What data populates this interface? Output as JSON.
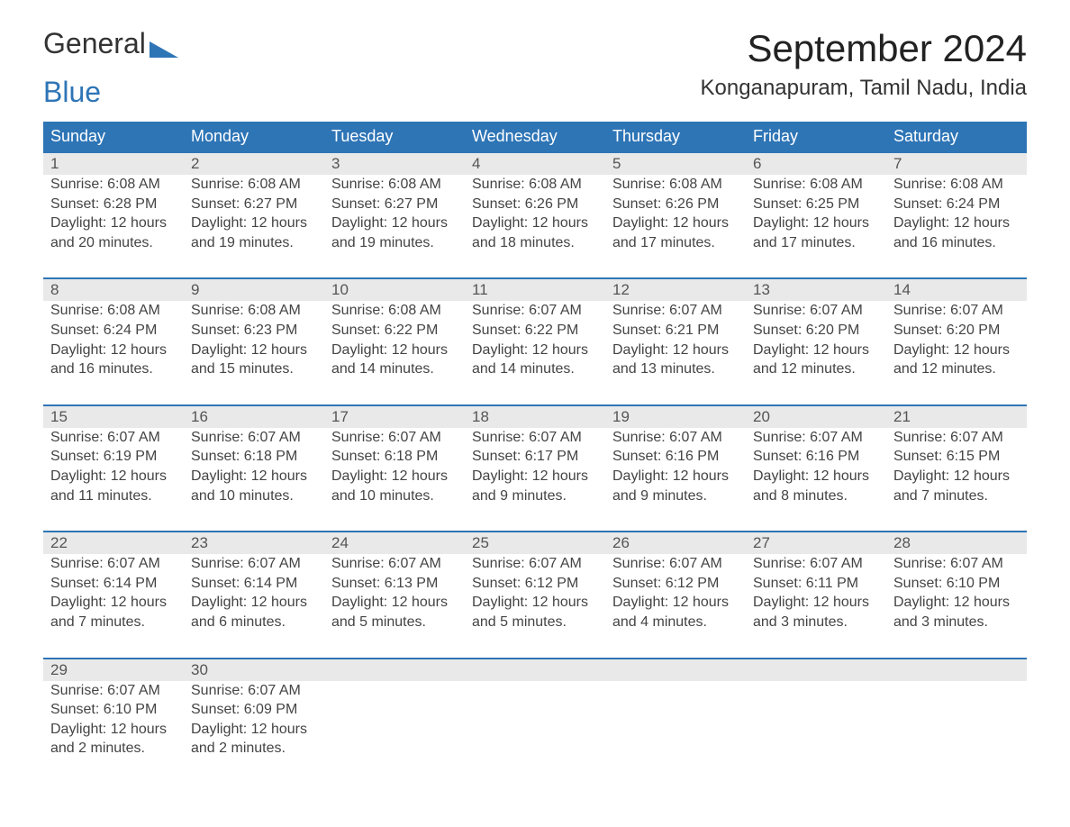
{
  "logo": {
    "part1": "General",
    "part2": "Blue"
  },
  "title": "September 2024",
  "location": "Konganapuram, Tamil Nadu, India",
  "weekdays": [
    "Sunday",
    "Monday",
    "Tuesday",
    "Wednesday",
    "Thursday",
    "Friday",
    "Saturday"
  ],
  "colors": {
    "header_bg": "#2e75b6",
    "header_text": "#ffffff",
    "daynum_bg": "#e9e9e9",
    "daynum_border": "#2e75b6",
    "body_text": "#444444",
    "background": "#ffffff"
  },
  "typography": {
    "title_fontsize_pt": 32,
    "location_fontsize_pt": 18,
    "header_fontsize_pt": 14,
    "cell_fontsize_pt": 12
  },
  "weeks": [
    [
      {
        "n": "1",
        "sr": "Sunrise: 6:08 AM",
        "ss": "Sunset: 6:28 PM",
        "d1": "Daylight: 12 hours",
        "d2": "and 20 minutes."
      },
      {
        "n": "2",
        "sr": "Sunrise: 6:08 AM",
        "ss": "Sunset: 6:27 PM",
        "d1": "Daylight: 12 hours",
        "d2": "and 19 minutes."
      },
      {
        "n": "3",
        "sr": "Sunrise: 6:08 AM",
        "ss": "Sunset: 6:27 PM",
        "d1": "Daylight: 12 hours",
        "d2": "and 19 minutes."
      },
      {
        "n": "4",
        "sr": "Sunrise: 6:08 AM",
        "ss": "Sunset: 6:26 PM",
        "d1": "Daylight: 12 hours",
        "d2": "and 18 minutes."
      },
      {
        "n": "5",
        "sr": "Sunrise: 6:08 AM",
        "ss": "Sunset: 6:26 PM",
        "d1": "Daylight: 12 hours",
        "d2": "and 17 minutes."
      },
      {
        "n": "6",
        "sr": "Sunrise: 6:08 AM",
        "ss": "Sunset: 6:25 PM",
        "d1": "Daylight: 12 hours",
        "d2": "and 17 minutes."
      },
      {
        "n": "7",
        "sr": "Sunrise: 6:08 AM",
        "ss": "Sunset: 6:24 PM",
        "d1": "Daylight: 12 hours",
        "d2": "and 16 minutes."
      }
    ],
    [
      {
        "n": "8",
        "sr": "Sunrise: 6:08 AM",
        "ss": "Sunset: 6:24 PM",
        "d1": "Daylight: 12 hours",
        "d2": "and 16 minutes."
      },
      {
        "n": "9",
        "sr": "Sunrise: 6:08 AM",
        "ss": "Sunset: 6:23 PM",
        "d1": "Daylight: 12 hours",
        "d2": "and 15 minutes."
      },
      {
        "n": "10",
        "sr": "Sunrise: 6:08 AM",
        "ss": "Sunset: 6:22 PM",
        "d1": "Daylight: 12 hours",
        "d2": "and 14 minutes."
      },
      {
        "n": "11",
        "sr": "Sunrise: 6:07 AM",
        "ss": "Sunset: 6:22 PM",
        "d1": "Daylight: 12 hours",
        "d2": "and 14 minutes."
      },
      {
        "n": "12",
        "sr": "Sunrise: 6:07 AM",
        "ss": "Sunset: 6:21 PM",
        "d1": "Daylight: 12 hours",
        "d2": "and 13 minutes."
      },
      {
        "n": "13",
        "sr": "Sunrise: 6:07 AM",
        "ss": "Sunset: 6:20 PM",
        "d1": "Daylight: 12 hours",
        "d2": "and 12 minutes."
      },
      {
        "n": "14",
        "sr": "Sunrise: 6:07 AM",
        "ss": "Sunset: 6:20 PM",
        "d1": "Daylight: 12 hours",
        "d2": "and 12 minutes."
      }
    ],
    [
      {
        "n": "15",
        "sr": "Sunrise: 6:07 AM",
        "ss": "Sunset: 6:19 PM",
        "d1": "Daylight: 12 hours",
        "d2": "and 11 minutes."
      },
      {
        "n": "16",
        "sr": "Sunrise: 6:07 AM",
        "ss": "Sunset: 6:18 PM",
        "d1": "Daylight: 12 hours",
        "d2": "and 10 minutes."
      },
      {
        "n": "17",
        "sr": "Sunrise: 6:07 AM",
        "ss": "Sunset: 6:18 PM",
        "d1": "Daylight: 12 hours",
        "d2": "and 10 minutes."
      },
      {
        "n": "18",
        "sr": "Sunrise: 6:07 AM",
        "ss": "Sunset: 6:17 PM",
        "d1": "Daylight: 12 hours",
        "d2": "and 9 minutes."
      },
      {
        "n": "19",
        "sr": "Sunrise: 6:07 AM",
        "ss": "Sunset: 6:16 PM",
        "d1": "Daylight: 12 hours",
        "d2": "and 9 minutes."
      },
      {
        "n": "20",
        "sr": "Sunrise: 6:07 AM",
        "ss": "Sunset: 6:16 PM",
        "d1": "Daylight: 12 hours",
        "d2": "and 8 minutes."
      },
      {
        "n": "21",
        "sr": "Sunrise: 6:07 AM",
        "ss": "Sunset: 6:15 PM",
        "d1": "Daylight: 12 hours",
        "d2": "and 7 minutes."
      }
    ],
    [
      {
        "n": "22",
        "sr": "Sunrise: 6:07 AM",
        "ss": "Sunset: 6:14 PM",
        "d1": "Daylight: 12 hours",
        "d2": "and 7 minutes."
      },
      {
        "n": "23",
        "sr": "Sunrise: 6:07 AM",
        "ss": "Sunset: 6:14 PM",
        "d1": "Daylight: 12 hours",
        "d2": "and 6 minutes."
      },
      {
        "n": "24",
        "sr": "Sunrise: 6:07 AM",
        "ss": "Sunset: 6:13 PM",
        "d1": "Daylight: 12 hours",
        "d2": "and 5 minutes."
      },
      {
        "n": "25",
        "sr": "Sunrise: 6:07 AM",
        "ss": "Sunset: 6:12 PM",
        "d1": "Daylight: 12 hours",
        "d2": "and 5 minutes."
      },
      {
        "n": "26",
        "sr": "Sunrise: 6:07 AM",
        "ss": "Sunset: 6:12 PM",
        "d1": "Daylight: 12 hours",
        "d2": "and 4 minutes."
      },
      {
        "n": "27",
        "sr": "Sunrise: 6:07 AM",
        "ss": "Sunset: 6:11 PM",
        "d1": "Daylight: 12 hours",
        "d2": "and 3 minutes."
      },
      {
        "n": "28",
        "sr": "Sunrise: 6:07 AM",
        "ss": "Sunset: 6:10 PM",
        "d1": "Daylight: 12 hours",
        "d2": "and 3 minutes."
      }
    ],
    [
      {
        "n": "29",
        "sr": "Sunrise: 6:07 AM",
        "ss": "Sunset: 6:10 PM",
        "d1": "Daylight: 12 hours",
        "d2": "and 2 minutes."
      },
      {
        "n": "30",
        "sr": "Sunrise: 6:07 AM",
        "ss": "Sunset: 6:09 PM",
        "d1": "Daylight: 12 hours",
        "d2": "and 2 minutes."
      },
      {
        "n": "",
        "sr": "",
        "ss": "",
        "d1": "",
        "d2": ""
      },
      {
        "n": "",
        "sr": "",
        "ss": "",
        "d1": "",
        "d2": ""
      },
      {
        "n": "",
        "sr": "",
        "ss": "",
        "d1": "",
        "d2": ""
      },
      {
        "n": "",
        "sr": "",
        "ss": "",
        "d1": "",
        "d2": ""
      },
      {
        "n": "",
        "sr": "",
        "ss": "",
        "d1": "",
        "d2": ""
      }
    ]
  ]
}
